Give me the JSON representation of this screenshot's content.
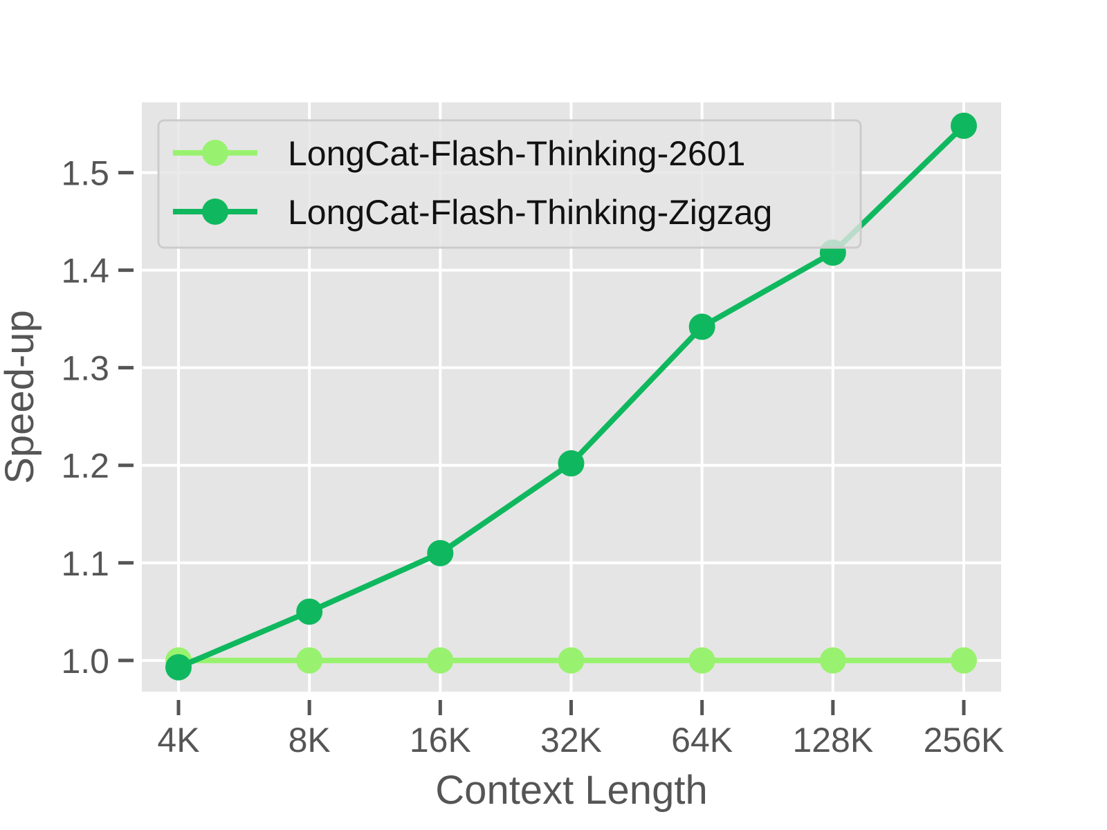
{
  "chart_data": {
    "type": "line",
    "categories": [
      "4K",
      "8K",
      "16K",
      "32K",
      "64K",
      "128K",
      "256K"
    ],
    "series": [
      {
        "name": "LongCat-Flash-Thinking-2601",
        "color": "#99f26f",
        "values": [
          1.0,
          1.0,
          1.0,
          1.0,
          1.0,
          1.0,
          1.0
        ]
      },
      {
        "name": "LongCat-Flash-Thinking-Zigzag",
        "color": "#0fb85e",
        "values": [
          0.993,
          1.05,
          1.11,
          1.202,
          1.342,
          1.418,
          1.548
        ]
      }
    ],
    "xlabel": "Context Length",
    "ylabel": "Speed-up",
    "ylim": [
      0.968,
      1.572
    ],
    "yticks": [
      1.0,
      1.1,
      1.2,
      1.3,
      1.4,
      1.5
    ],
    "ytick_labels": [
      "1.0",
      "1.1",
      "1.2",
      "1.3",
      "1.4",
      "1.5"
    ],
    "grid": true,
    "background": "#e5e5e5",
    "legend_position": "upper-left"
  }
}
